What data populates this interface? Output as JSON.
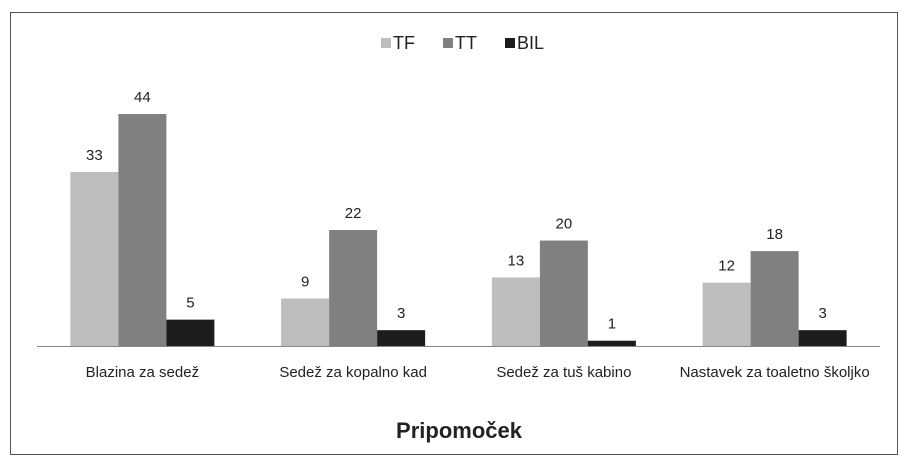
{
  "chart_data": {
    "type": "bar",
    "x_label": "Pripomoček",
    "categories": [
      "Blazina za sedež",
      "Sedež za kopalno kad",
      "Sedež za tuš kabino",
      "Nastavek za toaletno školjko"
    ],
    "series": [
      {
        "name": "TF",
        "color": "#bdbdbd",
        "values": [
          33,
          9,
          13,
          12
        ]
      },
      {
        "name": "TT",
        "color": "#808080",
        "values": [
          44,
          22,
          20,
          18
        ]
      },
      {
        "name": "BIL",
        "color": "#1c1c1c",
        "values": [
          5,
          3,
          1,
          3
        ]
      }
    ],
    "legend": "top"
  }
}
